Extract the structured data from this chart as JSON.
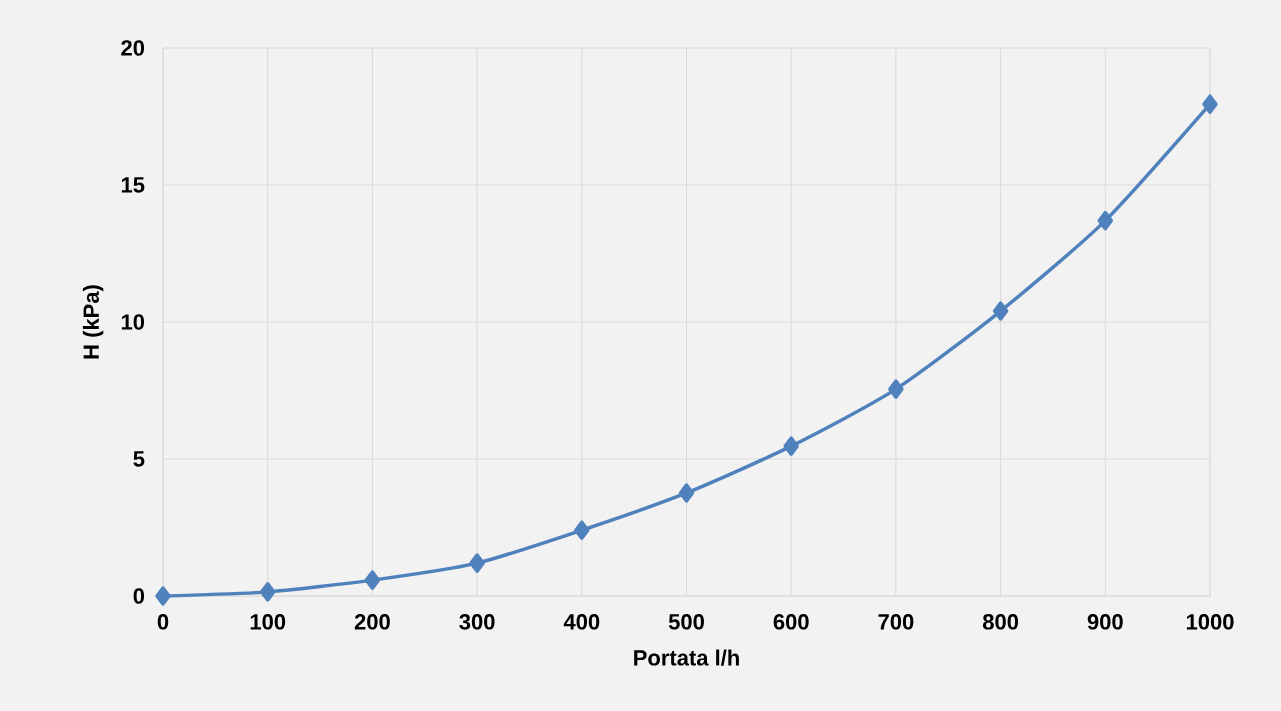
{
  "chart_data": {
    "type": "line",
    "xlabel": "Portata l/h",
    "ylabel": "H (kPa)",
    "x": [
      0,
      100,
      200,
      300,
      400,
      500,
      600,
      700,
      800,
      900,
      1000
    ],
    "series": [
      {
        "color": "#4f81bd",
        "values": [
          0,
          0.15,
          0.58,
          1.2,
          2.4,
          3.76,
          5.47,
          7.55,
          10.4,
          13.7,
          17.95
        ]
      }
    ],
    "xlim": [
      0,
      1000
    ],
    "xticks": [
      0,
      100,
      200,
      300,
      400,
      500,
      600,
      700,
      800,
      900,
      1000
    ],
    "ylim": [
      0,
      20
    ],
    "yticks": [
      0,
      5,
      10,
      15,
      20
    ],
    "grid": true,
    "marker": "diamond",
    "line_style": "solid"
  }
}
